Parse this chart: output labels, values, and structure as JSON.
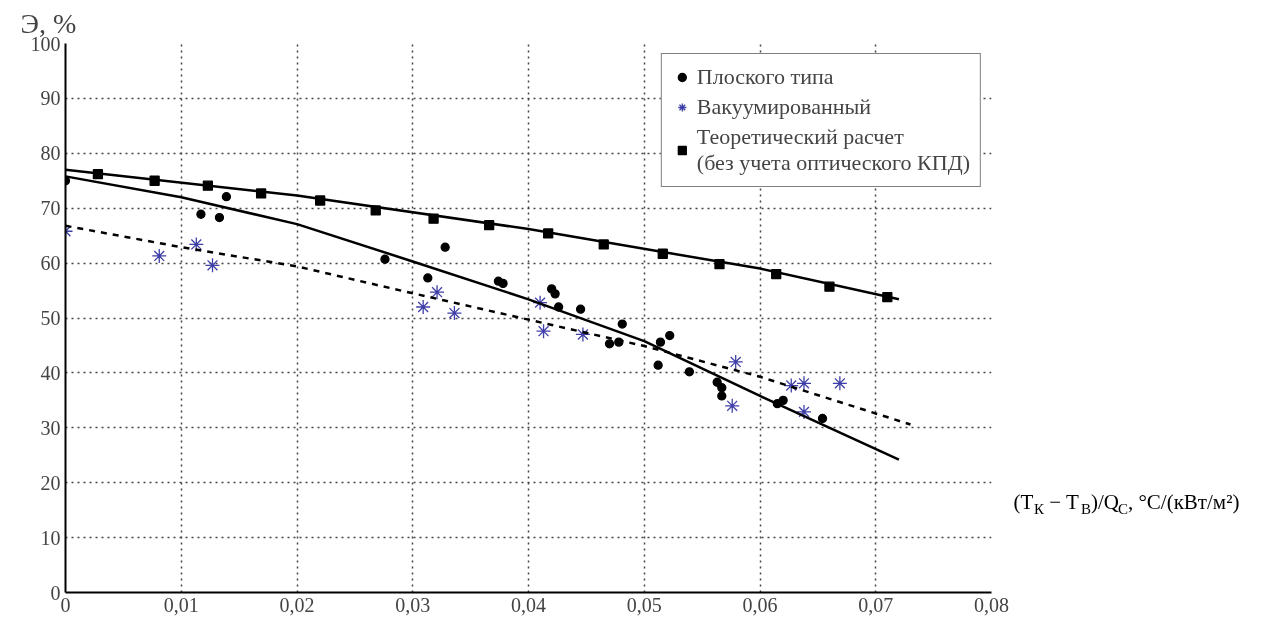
{
  "chart_data": {
    "type": "scatter",
    "xlabel": "(T$_{К}$ − T$_{В}$)/Q$_{С}$, °C/(кВт/м²)",
    "ylabel": "Э, %",
    "xlim": [
      0,
      0.08
    ],
    "ylim": [
      0,
      100
    ],
    "xticks": [
      0,
      {
        "value": 0.01,
        "label": "0,01"
      },
      {
        "value": 0.02,
        "label": "0,02"
      },
      {
        "value": 0.03,
        "label": "0,03"
      },
      {
        "value": 0.04,
        "label": "0,04"
      },
      {
        "value": 0.05,
        "label": "0,05"
      },
      {
        "value": 0.06,
        "label": "0,06"
      },
      {
        "value": 0.07,
        "label": "0,07"
      },
      {
        "value": 0.08,
        "label": "0,08"
      }
    ],
    "yticks": [
      0,
      10,
      20,
      30,
      40,
      50,
      60,
      70,
      80,
      90,
      100
    ],
    "grid": true,
    "legend": "top right",
    "series": [
      {
        "name": "Плоского типа",
        "marker": "circle",
        "color": "#000000",
        "x": [
          0,
          0.0117,
          0.0133,
          0.0139,
          0.0276,
          0.0313,
          0.0328,
          0.0374,
          0.0378,
          0.042,
          0.0423,
          0.0426,
          0.0445,
          0.047,
          0.0478,
          0.0481,
          0.0512,
          0.0514,
          0.0522,
          0.0539,
          0.0563,
          0.0567,
          0.0567,
          0.0615,
          0.062,
          0.0654
        ],
        "values": [
          75.0,
          68.9,
          68.3,
          72.1,
          60.7,
          57.3,
          62.9,
          56.7,
          56.3,
          55.3,
          54.4,
          52.0,
          51.6,
          45.3,
          45.6,
          48.9,
          41.4,
          45.6,
          46.8,
          40.2,
          38.3,
          37.3,
          35.8,
          34.4,
          35.0,
          31.7
        ]
      },
      {
        "name": "Вакуумированный",
        "marker": "cross",
        "color": "#3f3fa8",
        "x": [
          0,
          0.0081,
          0.0113,
          0.0127,
          0.0309,
          0.0321,
          0.0336,
          0.041,
          0.0413,
          0.0447,
          0.0576,
          0.0579,
          0.0627,
          0.0638,
          0.0638,
          0.0669
        ],
        "values": [
          65.8,
          61.3,
          63.4,
          59.6,
          52.0,
          54.7,
          50.9,
          52.8,
          47.6,
          47.0,
          34.0,
          42.0,
          37.7,
          38.1,
          32.9,
          38.1
        ]
      },
      {
        "name": "Теоретический расчет\n(без учета оптического КПД)",
        "marker": "square",
        "color": "#000000",
        "x": [
          0.0028,
          0.0077,
          0.0123,
          0.0169,
          0.022,
          0.0268,
          0.0318,
          0.0366,
          0.0417,
          0.0465,
          0.0516,
          0.0565,
          0.0614,
          0.066,
          0.071
        ],
        "values": [
          76.2,
          75.0,
          74.1,
          72.7,
          71.4,
          69.6,
          68.1,
          66.9,
          65.4,
          63.4,
          61.7,
          59.8,
          58.0,
          55.7,
          53.8
        ]
      },
      {
        "type": "line",
        "line_style": "solid",
        "color": "#000000",
        "x": [
          0,
          0.02,
          0.04,
          0.06,
          0.072
        ],
        "values": [
          77.0,
          72.3,
          66.2,
          59.0,
          53.4
        ]
      },
      {
        "type": "line",
        "line_style": "solid",
        "color": "#000000",
        "x": [
          0,
          0.01,
          0.02,
          0.03,
          0.04,
          0.05,
          0.06,
          0.072
        ],
        "values": [
          75.8,
          72.0,
          67.1,
          60.3,
          53.4,
          45.8,
          35.8,
          24.2
        ]
      },
      {
        "type": "line",
        "line_style": "dashed",
        "color": "#000000",
        "x": [
          0,
          0.01,
          0.02,
          0.03,
          0.04,
          0.05,
          0.06,
          0.073
        ],
        "values": [
          66.8,
          62.9,
          59.4,
          54.5,
          49.7,
          44.9,
          39.3,
          30.6
        ]
      }
    ]
  }
}
